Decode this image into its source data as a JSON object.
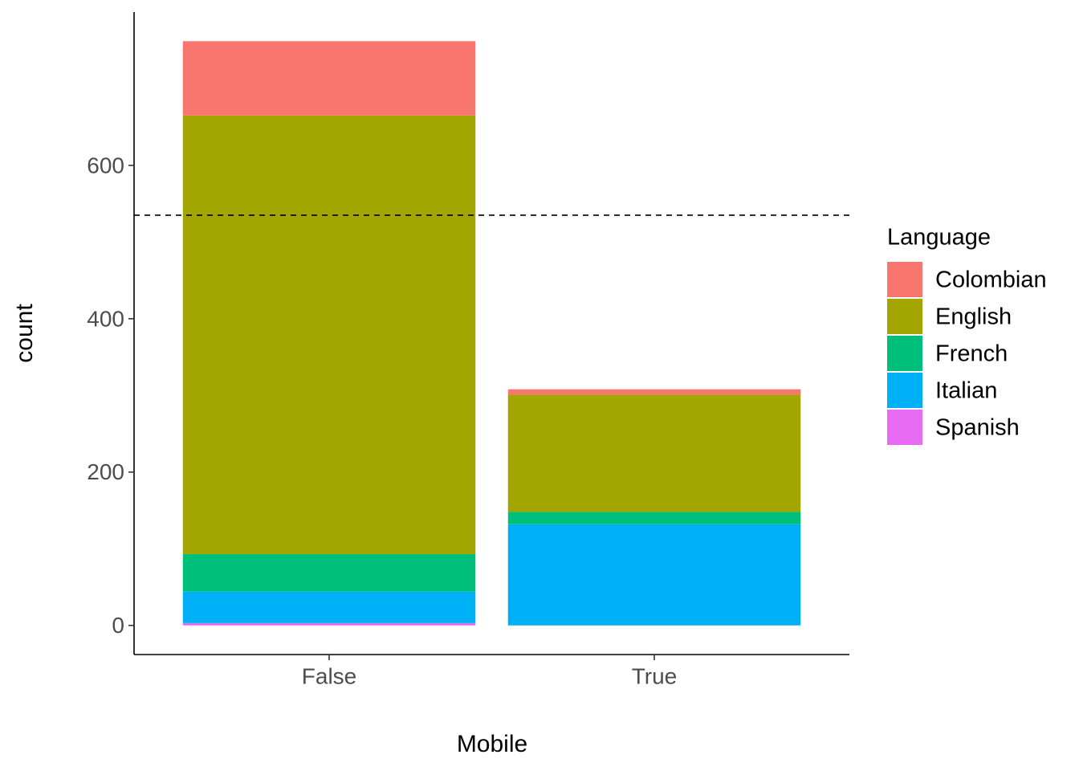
{
  "chart_data": {
    "type": "bar",
    "stacked": true,
    "x_label": "Mobile",
    "y_label": "count",
    "categories": [
      "False",
      "True"
    ],
    "legend_title": "Language",
    "legend_position": "right",
    "series": [
      {
        "name": "Colombian",
        "color": "#f8766d",
        "values": [
          97,
          7
        ]
      },
      {
        "name": "English",
        "color": "#a3a500",
        "values": [
          572,
          153
        ]
      },
      {
        "name": "French",
        "color": "#00bf7d",
        "values": [
          49,
          16
        ]
      },
      {
        "name": "Italian",
        "color": "#00b0f6",
        "values": [
          41,
          132
        ]
      },
      {
        "name": "Spanish",
        "color": "#e76bf3",
        "values": [
          3,
          0
        ]
      }
    ],
    "ylim": [
      -38,
      800
    ],
    "yticks": [
      0,
      200,
      400,
      600
    ],
    "hline": 535,
    "hline_style": "dashed",
    "grid": false
  }
}
